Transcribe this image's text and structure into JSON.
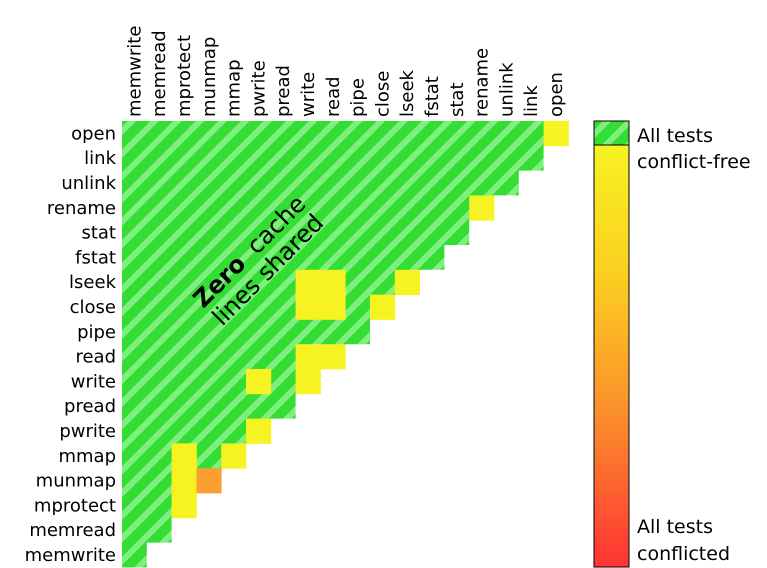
{
  "chart_data": {
    "type": "heatmap",
    "columns": [
      "memwrite",
      "memread",
      "mprotect",
      "munmap",
      "mmap",
      "pwrite",
      "pread",
      "write",
      "read",
      "pipe",
      "close",
      "lseek",
      "fstat",
      "stat",
      "rename",
      "unlink",
      "link",
      "open"
    ],
    "rows": [
      "open",
      "link",
      "unlink",
      "rename",
      "stat",
      "fstat",
      "lseek",
      "close",
      "pipe",
      "read",
      "write",
      "pread",
      "pwrite",
      "mmap",
      "munmap",
      "mprotect",
      "memread",
      "memwrite"
    ],
    "value_meaning": "fraction of tests conflicted (0 = all conflict-free, 1 = all conflicted); cells not listed are 0",
    "nonzero_cells": [
      {
        "row": "open",
        "col": "open",
        "value": 0.15
      },
      {
        "row": "rename",
        "col": "rename",
        "value": 0.15
      },
      {
        "row": "lseek",
        "col": "write",
        "value": 0.15
      },
      {
        "row": "lseek",
        "col": "read",
        "value": 0.15
      },
      {
        "row": "lseek",
        "col": "lseek",
        "value": 0.15
      },
      {
        "row": "close",
        "col": "write",
        "value": 0.15
      },
      {
        "row": "close",
        "col": "read",
        "value": 0.15
      },
      {
        "row": "close",
        "col": "close",
        "value": 0.15
      },
      {
        "row": "read",
        "col": "write",
        "value": 0.15
      },
      {
        "row": "read",
        "col": "read",
        "value": 0.15
      },
      {
        "row": "write",
        "col": "pwrite",
        "value": 0.15
      },
      {
        "row": "write",
        "col": "write",
        "value": 0.2
      },
      {
        "row": "pwrite",
        "col": "pwrite",
        "value": 0.15
      },
      {
        "row": "mmap",
        "col": "mprotect",
        "value": 0.15
      },
      {
        "row": "mmap",
        "col": "mmap",
        "value": 0.15
      },
      {
        "row": "munmap",
        "col": "mprotect",
        "value": 0.15
      },
      {
        "row": "munmap",
        "col": "munmap",
        "value": 0.55
      },
      {
        "row": "mprotect",
        "col": "mprotect",
        "value": 0.15
      }
    ],
    "annotation": {
      "bold": "Zero",
      "rest": "cache",
      "line2": "lines shared"
    },
    "legend": {
      "top_line1": "All tests",
      "top_line2": "conflict-free",
      "bottom_line1": "All tests",
      "bottom_line2": "conflicted"
    },
    "colors": {
      "green": "#33dd33",
      "stripe": "#7ff07f",
      "yellow": "#f7f222",
      "orange": "#f9a030",
      "red": "#ff3333"
    }
  }
}
